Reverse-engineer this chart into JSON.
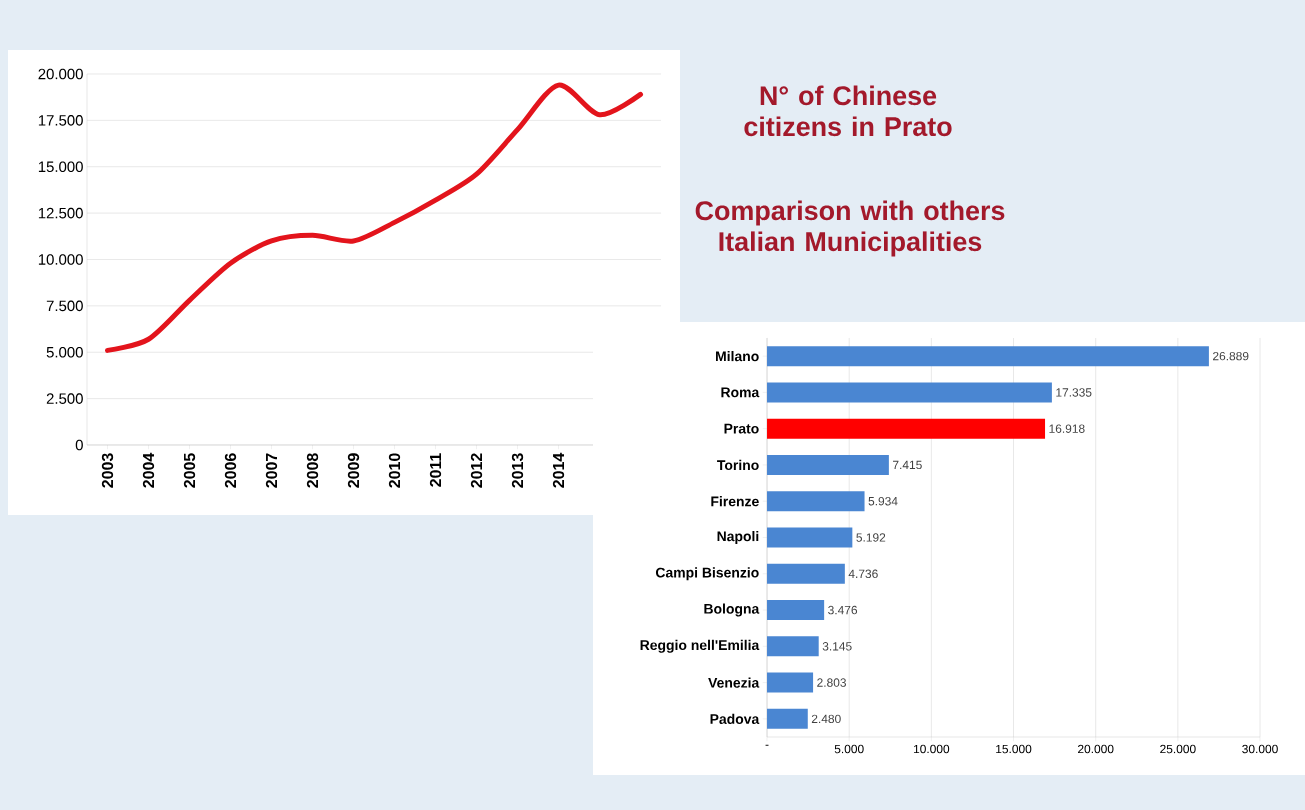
{
  "chart_data": [
    {
      "type": "line",
      "categories": [
        "2003",
        "2004",
        "2005",
        "2006",
        "2007",
        "2008",
        "2009",
        "2010",
        "2011",
        "2012",
        "2013",
        "2014",
        null,
        null
      ],
      "series": [
        {
          "color": "#e3141c",
          "values": [
            5100,
            5700,
            7800,
            9800,
            11000,
            11300,
            11000,
            12000,
            13200,
            14600,
            17000,
            19400,
            17800,
            18900
          ]
        }
      ],
      "ylim": [
        0,
        20000
      ],
      "yticks": [
        {
          "value": 0,
          "label": "0"
        },
        {
          "value": 2500,
          "label": "2.500"
        },
        {
          "value": 5000,
          "label": "5.000"
        },
        {
          "value": 7500,
          "label": "7.500"
        },
        {
          "value": 10000,
          "label": "10.000"
        },
        {
          "value": 12500,
          "label": "12.500"
        },
        {
          "value": 15000,
          "label": "15.000"
        },
        {
          "value": 17500,
          "label": "17.500"
        },
        {
          "value": 20000,
          "label": "20.000"
        }
      ],
      "grid": "y"
    },
    {
      "type": "bar",
      "orientation": "horizontal",
      "title": "N° of Chinese citizens in Prato",
      "subtitle": "Comparison with others Italian Municipalities",
      "categories": [
        "Milano",
        "Roma",
        "Prato",
        "Torino",
        "Firenze",
        "Napoli",
        "Campi Bisenzio",
        "Bologna",
        "Reggio nell'Emilia",
        "Venezia",
        "Padova"
      ],
      "values": [
        26889,
        17335,
        16918,
        7415,
        5934,
        5192,
        4736,
        3476,
        3145,
        2803,
        2480
      ],
      "colors": [
        "#4a86d2",
        "#4a86d2",
        "#ff0000",
        "#4a86d2",
        "#4a86d2",
        "#4a86d2",
        "#4a86d2",
        "#4a86d2",
        "#4a86d2",
        "#4a86d2",
        "#4a86d2"
      ],
      "value_labels": [
        "26.889",
        "17.335",
        "16.918",
        "7.415",
        "5.934",
        "5.192",
        "4.736",
        "3.476",
        "3.145",
        "2.803",
        "2.480"
      ],
      "xlim": [
        0,
        30000
      ],
      "xticks": [
        {
          "value": 0,
          "label": "-"
        },
        {
          "value": 5000,
          "label": "5.000"
        },
        {
          "value": 10000,
          "label": "10.000"
        },
        {
          "value": 15000,
          "label": "15.000"
        },
        {
          "value": 20000,
          "label": "20.000"
        },
        {
          "value": 25000,
          "label": "25.000"
        },
        {
          "value": 30000,
          "label": "30.000"
        }
      ],
      "grid": "x"
    }
  ]
}
